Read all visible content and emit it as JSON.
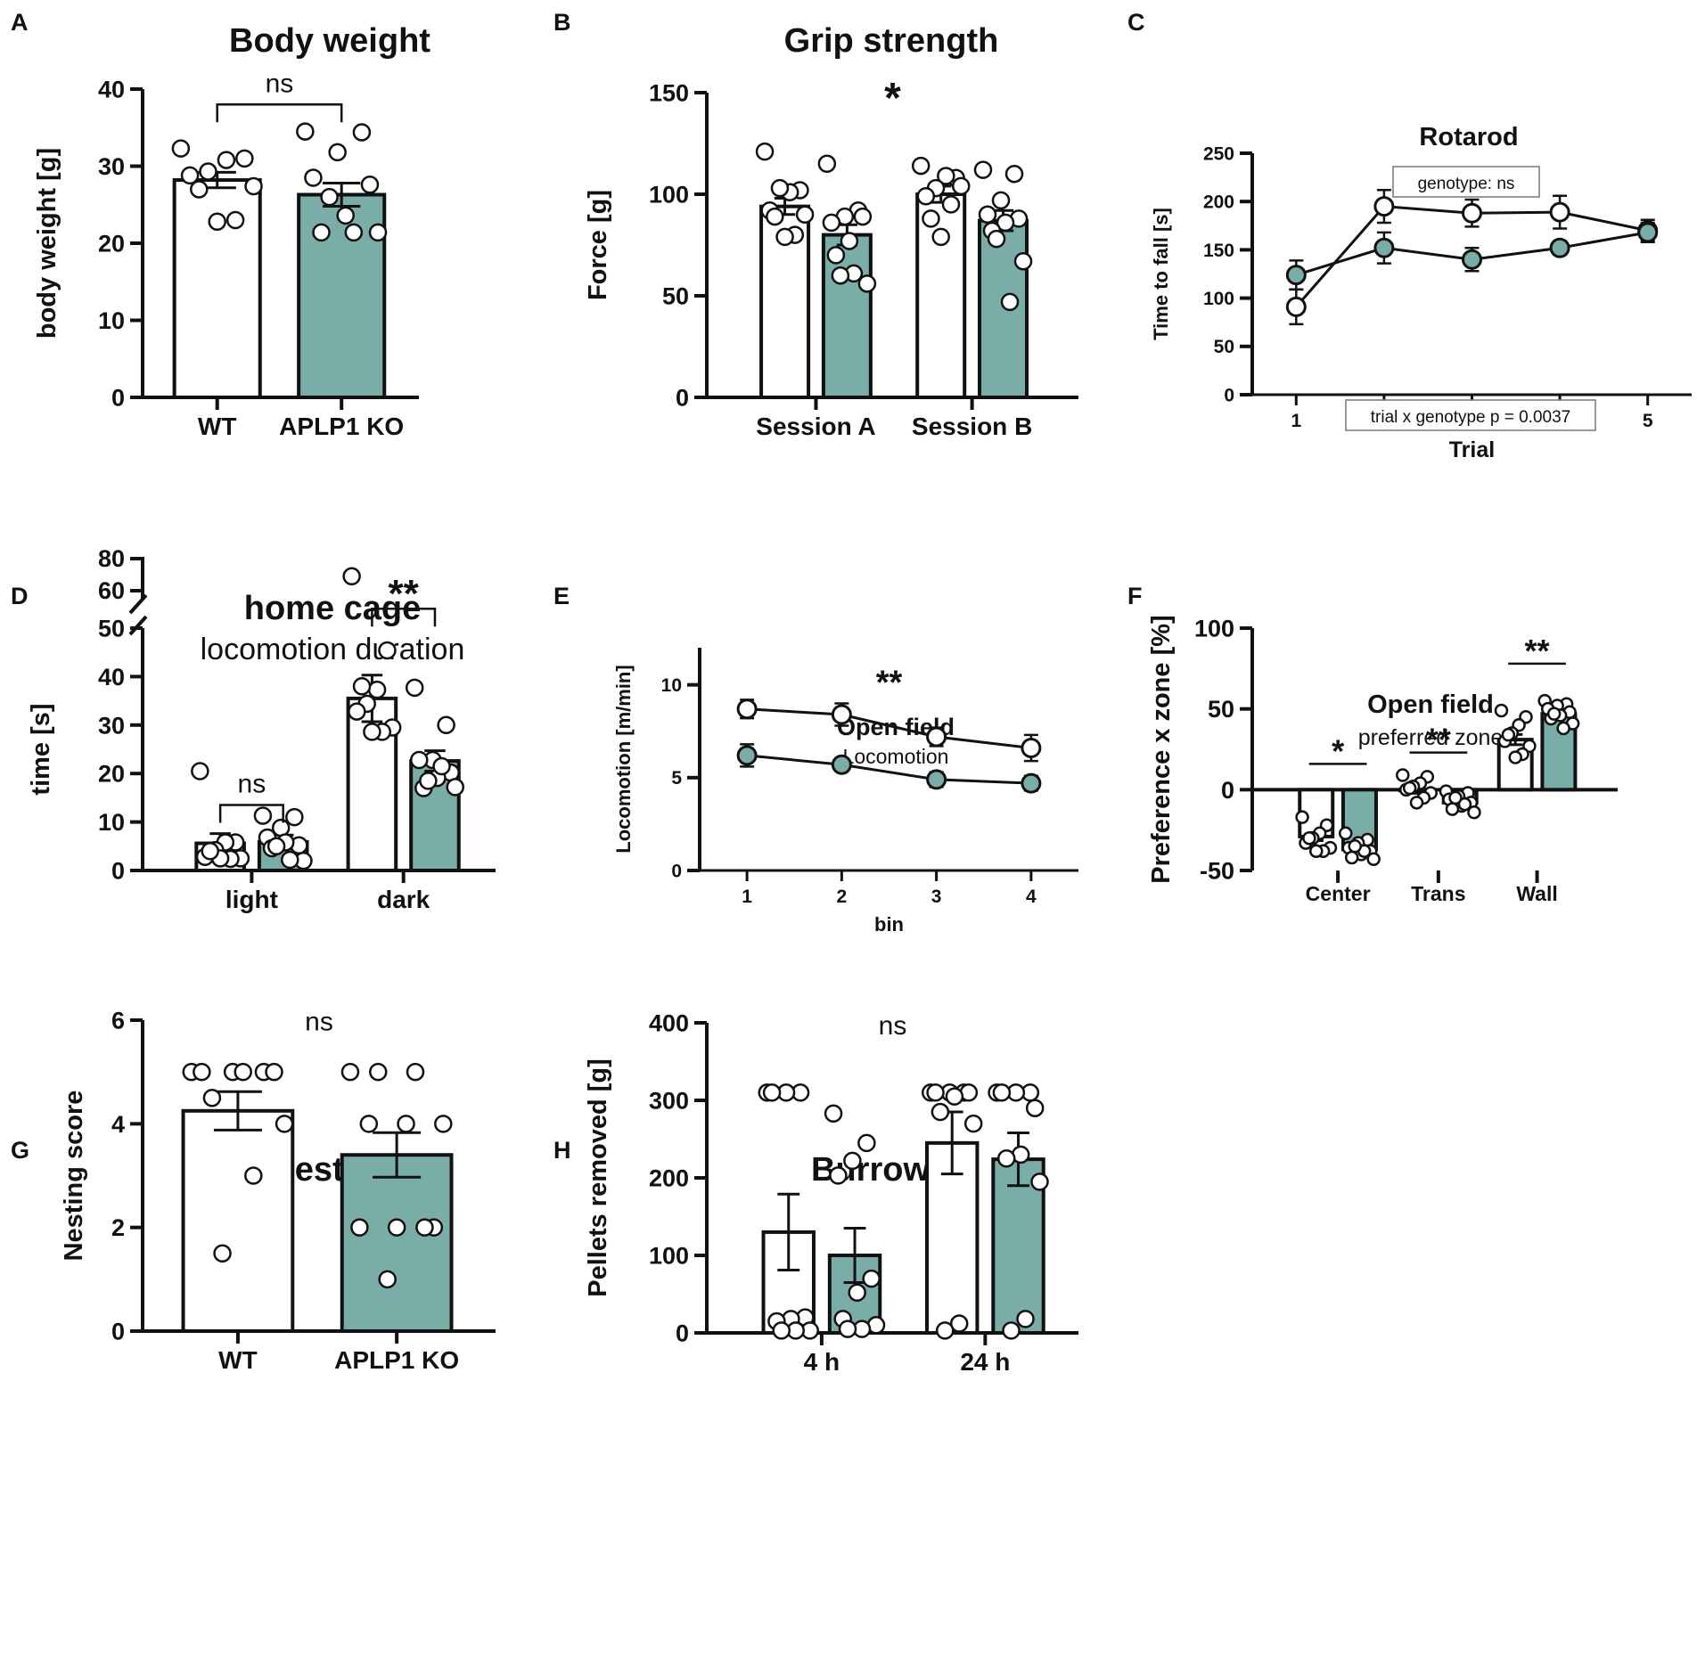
{
  "colors": {
    "ko": "#7aaca8",
    "wt": "#ffffff",
    "stroke": "#111111"
  },
  "chart_data": [
    {
      "id": "A",
      "panel_label": "A",
      "type": "bar",
      "title": "Body weight",
      "subtitle": "",
      "ylabel": "body weight [g]",
      "xlabel": "",
      "ylim": [
        0,
        40
      ],
      "yticks": [
        0,
        10,
        20,
        30,
        40
      ],
      "groups": [
        "WT",
        "APLP1 KO"
      ],
      "bars": [
        {
          "group": 0,
          "series": "WT",
          "value": 28.2,
          "sem": 1.0,
          "points": [
            32.3,
            31.0,
            30.8,
            29.3,
            28.8,
            27.4,
            23.0,
            22.8,
            27.0
          ]
        },
        {
          "group": 1,
          "series": "APLP1 KO",
          "value": 26.3,
          "sem": 1.5,
          "points": [
            34.5,
            34.4,
            31.8,
            28.5,
            27.6,
            23.6,
            21.4,
            21.4,
            21.4,
            26.0
          ]
        }
      ],
      "annotations": [
        {
          "text": "ns",
          "from": 0,
          "to": 1,
          "y": 38
        }
      ]
    },
    {
      "id": "B",
      "panel_label": "B",
      "type": "bar",
      "title": "Grip strength",
      "subtitle": "",
      "ylabel": "Force [g]",
      "xlabel": "",
      "ylim": [
        0,
        150
      ],
      "yticks": [
        0,
        50,
        100,
        150
      ],
      "groups": [
        "Session A",
        "Session B"
      ],
      "bars": [
        {
          "group": 0,
          "series": "WT",
          "value": 94,
          "sem": 4,
          "points": [
            121,
            102,
            101,
            103,
            92,
            90,
            80,
            79,
            89
          ]
        },
        {
          "group": 0,
          "series": "APLP1 KO",
          "value": 80,
          "sem": 5,
          "points": [
            115,
            92,
            89,
            86,
            89,
            77,
            70,
            56,
            61,
            60
          ]
        },
        {
          "group": 1,
          "series": "WT",
          "value": 100,
          "sem": 4,
          "points": [
            114,
            108,
            109,
            103,
            99,
            104,
            95,
            79,
            88
          ]
        },
        {
          "group": 1,
          "series": "APLP1 KO",
          "value": 87,
          "sem": 5,
          "points": [
            112,
            110,
            97,
            90,
            88,
            86,
            82,
            67,
            47,
            78
          ]
        }
      ],
      "annotations": [
        {
          "text": "*",
          "x": 0.5,
          "y": 150
        }
      ]
    },
    {
      "id": "C",
      "panel_label": "C",
      "type": "line",
      "title": "Rotarod",
      "subtitle": "",
      "ylabel": "Time to fall [s]",
      "xlabel": "Trial",
      "ylim": [
        0,
        250
      ],
      "yticks": [
        0,
        50,
        100,
        150,
        200,
        250
      ],
      "xlim": [
        0.5,
        5.5
      ],
      "x": [
        1,
        2,
        3,
        4,
        5
      ],
      "series": [
        {
          "name": "WT",
          "values": [
            91,
            195,
            188,
            189,
            170
          ],
          "sem": [
            18,
            17,
            14,
            17,
            11
          ]
        },
        {
          "name": "APLP1 KO",
          "values": [
            124,
            152,
            140,
            152,
            168
          ],
          "sem": [
            15,
            16,
            12,
            7,
            10
          ]
        }
      ],
      "boxes": [
        "genotype: ns",
        "trial x genotype p = 0.0037"
      ]
    },
    {
      "id": "D",
      "panel_label": "D",
      "type": "bar",
      "title": "home cage",
      "subtitle": "locomotion duration",
      "ylabel": "time [s]",
      "xlabel": "",
      "ylim": [
        0,
        50
      ],
      "yticks": [
        0,
        10,
        20,
        30,
        40,
        50
      ],
      "broken_axis": {
        "upper_ticks": [
          60,
          80
        ],
        "upper_range": [
          55,
          80
        ]
      },
      "groups": [
        "light",
        "dark"
      ],
      "bars": [
        {
          "group": 0,
          "series": "WT",
          "value": 5.6,
          "sem": 2.0,
          "points": [
            20.5,
            5.8,
            5.8,
            4.2,
            2.8,
            2.5,
            2.4,
            2.5,
            4.0
          ]
        },
        {
          "group": 0,
          "series": "APLP1 KO",
          "value": 5.9,
          "sem": 1.4,
          "points": [
            11.3,
            11.0,
            8.8,
            6.8,
            5.2,
            5.8,
            4.6,
            2.0,
            2.2,
            5.0
          ]
        },
        {
          "group": 1,
          "series": "WT",
          "value": 35.5,
          "sem": 4.8,
          "points": [
            69,
            45.4,
            37.3,
            34.4,
            32.8,
            29.5,
            28.6,
            28.6,
            38.0
          ]
        },
        {
          "group": 1,
          "series": "APLP1 KO",
          "value": 22.6,
          "sem": 2.1,
          "points": [
            37.7,
            30.0,
            22.8,
            22.8,
            20.2,
            19.1,
            17.0,
            17.2,
            21.5,
            18.5
          ]
        }
      ],
      "annotations": [
        {
          "text": "ns",
          "from": 0,
          "to": 1,
          "group": 0,
          "y": 13.5
        },
        {
          "text": "**",
          "from": 0,
          "to": 1,
          "group": 1,
          "y": 54
        }
      ]
    },
    {
      "id": "E",
      "panel_label": "E",
      "type": "line",
      "title": "Open field",
      "subtitle": "Locomotion",
      "ylabel": "Locomotion [m/min]",
      "xlabel": "bin",
      "ylim": [
        0,
        12
      ],
      "yticks": [
        0,
        5,
        10
      ],
      "xlim": [
        0.5,
        4.5
      ],
      "x": [
        1,
        2,
        3,
        4
      ],
      "series": [
        {
          "name": "WT",
          "values": [
            8.7,
            8.4,
            7.2,
            6.6
          ],
          "sem": [
            0.5,
            0.6,
            0.5,
            0.7
          ]
        },
        {
          "name": "APLP1 KO",
          "values": [
            6.2,
            5.7,
            4.9,
            4.7
          ],
          "sem": [
            0.6,
            0.3,
            0.4,
            0.4
          ]
        }
      ],
      "annotations": [
        {
          "text": "**",
          "x": 2.5,
          "y": 10.5
        }
      ]
    },
    {
      "id": "F",
      "panel_label": "F",
      "type": "bar",
      "title": "Open field",
      "subtitle": "preferred zone",
      "ylabel": "Preference x zone [%]",
      "xlabel": "",
      "ylim": [
        -50,
        100
      ],
      "yticks": [
        -50,
        0,
        50,
        100
      ],
      "groups": [
        "Center",
        "Trans",
        "Wall"
      ],
      "bars": [
        {
          "group": 0,
          "series": "WT",
          "value": -29,
          "sem": 2.5,
          "points": [
            -17,
            -22,
            -27,
            -30,
            -33,
            -36,
            -38,
            -38,
            -30
          ]
        },
        {
          "group": 0,
          "series": "APLP1 KO",
          "value": -37,
          "sem": 1.5,
          "points": [
            -27,
            -31,
            -33,
            -36,
            -38,
            -40,
            -42,
            -43,
            -38,
            -35
          ]
        },
        {
          "group": 1,
          "series": "WT",
          "value": 0,
          "sem": 2.2,
          "points": [
            9,
            8,
            4,
            2,
            0,
            -2,
            -5,
            -8,
            1
          ]
        },
        {
          "group": 1,
          "series": "APLP1 KO",
          "value": -8,
          "sem": 1.5,
          "points": [
            -1,
            -2,
            -4,
            -6,
            -8,
            -10,
            -12,
            -14,
            -9,
            -5
          ]
        },
        {
          "group": 2,
          "series": "WT",
          "value": 31,
          "sem": 3.2,
          "points": [
            49,
            45,
            40,
            35,
            30,
            27,
            22,
            20,
            34
          ]
        },
        {
          "group": 2,
          "series": "APLP1 KO",
          "value": 47,
          "sem": 1.8,
          "points": [
            55,
            53,
            52,
            50,
            48,
            46,
            44,
            41,
            38,
            47
          ]
        }
      ],
      "annotations": [
        {
          "text": "*",
          "from": 0,
          "to": 1,
          "group": 0,
          "y": 16
        },
        {
          "text": "**",
          "from": 0,
          "to": 1,
          "group": 1,
          "y": 23
        },
        {
          "text": "**",
          "from": 0,
          "to": 1,
          "group": 2,
          "y": 78
        }
      ]
    },
    {
      "id": "G",
      "panel_label": "G",
      "type": "bar",
      "title": "Nesting",
      "subtitle": "",
      "ylabel": "Nesting score",
      "xlabel": "",
      "ylim": [
        0,
        6
      ],
      "yticks": [
        0,
        2,
        4,
        6
      ],
      "groups": [
        "WT",
        "APLP1 KO"
      ],
      "bars": [
        {
          "group": 0,
          "series": "WT",
          "value": 4.25,
          "sem": 0.37,
          "points": [
            5,
            5,
            5,
            5,
            5,
            5,
            4.5,
            4,
            3,
            1.5
          ]
        },
        {
          "group": 1,
          "series": "APLP1 KO",
          "value": 3.4,
          "sem": 0.43,
          "points": [
            5,
            5,
            5,
            4,
            4,
            4,
            2,
            2,
            2,
            2,
            1
          ]
        }
      ],
      "annotations": [
        {
          "text": "ns",
          "x": 0.5,
          "y": 5.8
        }
      ]
    },
    {
      "id": "H",
      "panel_label": "H",
      "type": "bar",
      "title": "Burrowing",
      "subtitle": "",
      "ylabel": "Pellets removed [g]",
      "xlabel": "",
      "ylim": [
        0,
        400
      ],
      "yticks": [
        0,
        100,
        200,
        300,
        400
      ],
      "groups": [
        "4 h",
        "24 h"
      ],
      "bars": [
        {
          "group": 0,
          "series": "WT",
          "value": 130,
          "sem": 49,
          "points": [
            310,
            310,
            310,
            310,
            20,
            18,
            15,
            3,
            3,
            3
          ]
        },
        {
          "group": 0,
          "series": "APLP1 KO",
          "value": 100,
          "sem": 35,
          "points": [
            283,
            245,
            222,
            203,
            70,
            52,
            18,
            10,
            5,
            5
          ]
        },
        {
          "group": 1,
          "series": "WT",
          "value": 245,
          "sem": 40,
          "points": [
            310,
            310,
            310,
            310,
            310,
            305,
            285,
            270,
            12,
            3
          ]
        },
        {
          "group": 1,
          "series": "APLP1 KO",
          "value": 224,
          "sem": 34,
          "points": [
            310,
            310,
            310,
            310,
            290,
            230,
            225,
            195,
            18,
            3
          ]
        }
      ],
      "annotations": [
        {
          "text": "ns",
          "x": 0.5,
          "y": 385
        }
      ]
    }
  ]
}
